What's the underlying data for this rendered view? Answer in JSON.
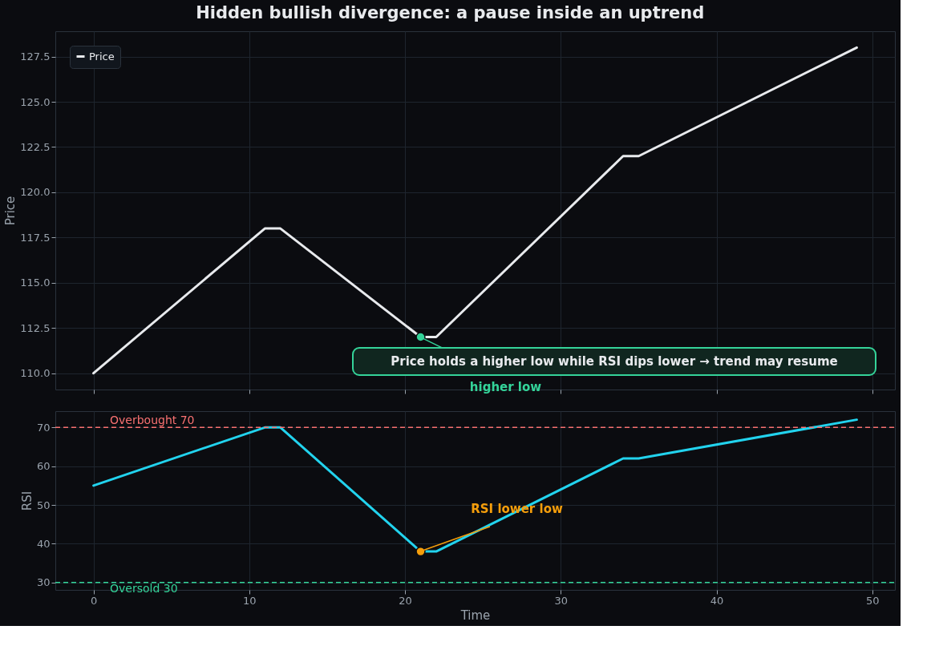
{
  "chart_data": [
    {
      "type": "line",
      "title": "Hidden bullish divergence: a pause inside an uptrend",
      "ylabel": "Price",
      "series": [
        {
          "name": "Price",
          "color": "#e8eaed",
          "x": [
            0,
            11,
            12,
            21,
            22,
            34,
            35,
            49
          ],
          "values": [
            110,
            118,
            118,
            112,
            112,
            122,
            122,
            128
          ]
        },
        {
          "type": "scatter",
          "color": "#34d399",
          "x": [
            21
          ],
          "values": [
            112
          ]
        }
      ],
      "annotations": [
        {
          "text": "higher low",
          "x": 21,
          "y": 112
        },
        "Price holds a higher low while RSI dips lower → trend may resume"
      ],
      "xlim": [
        -2.45,
        51.45
      ],
      "xticks": [
        0,
        10,
        20,
        30,
        40,
        50
      ],
      "ylim": [
        109.1,
        128.9
      ],
      "yticks": [
        {
          "value": 110,
          "label": "110.0"
        },
        {
          "value": 112.5,
          "label": "112.5"
        },
        {
          "value": 115,
          "label": "115.0"
        },
        {
          "value": 117.5,
          "label": "117.5"
        },
        {
          "value": 120,
          "label": "120.0"
        },
        {
          "value": 122.5,
          "label": "122.5"
        },
        {
          "value": 125,
          "label": "125.0"
        },
        {
          "value": 127.5,
          "label": "127.5"
        }
      ],
      "tick_labels": "y",
      "grid": true,
      "legend": "top left"
    },
    {
      "type": "line",
      "xlabel": "Time",
      "ylabel": "RSI",
      "series": [
        {
          "color": "#22d3ee",
          "x": [
            0,
            11,
            12,
            21,
            22,
            34,
            35,
            49
          ],
          "values": [
            55,
            70,
            70,
            38,
            38,
            62,
            62,
            72
          ]
        },
        {
          "type": "scatter",
          "color": "#f59e0b",
          "x": [
            21
          ],
          "values": [
            38
          ]
        }
      ],
      "annotations": [
        {
          "text": "RSI lower low",
          "x": 21,
          "y": 38
        }
      ],
      "ref_lines": [
        {
          "axis": "y",
          "value": 70,
          "label": "Overbought 70",
          "color": "#f87171",
          "line_style": "dashed"
        },
        {
          "axis": "y",
          "value": 30,
          "label": "Oversold 30",
          "color": "#34d399",
          "line_style": "dashed"
        }
      ],
      "xlim": [
        -2.45,
        51.45
      ],
      "xticks": [
        0,
        10,
        20,
        30,
        40,
        50
      ],
      "ylim": [
        28.1,
        74.2
      ],
      "yticks": [
        30,
        40,
        50,
        60,
        70
      ],
      "grid": true
    }
  ]
}
